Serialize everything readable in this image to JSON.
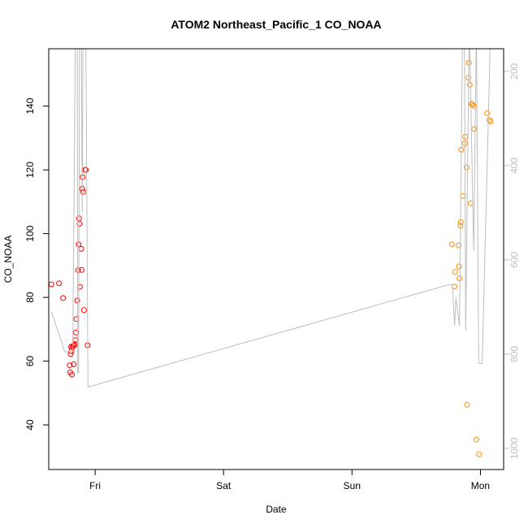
{
  "chart_data": {
    "type": "scatter",
    "title": "ATOM2 Northeast_Pacific_1 CO_NOAA",
    "xlabel": "Date",
    "ylabel": "CO_NOAA",
    "x_axis": {
      "type": "date",
      "range": [
        "2016-10-06T15:20",
        "2016-10-10T04:20"
      ],
      "ticks": [
        {
          "label": "Fri",
          "value": "2016-10-07T00:00"
        },
        {
          "label": "Sat",
          "value": "2016-10-08T00:00"
        },
        {
          "label": "Sun",
          "value": "2016-10-09T00:00"
        },
        {
          "label": "Mon",
          "value": "2016-10-10T00:00"
        }
      ]
    },
    "y_axis": {
      "range": [
        26,
        158
      ],
      "ticks": [
        40,
        60,
        80,
        100,
        120,
        140
      ]
    },
    "y2_axis": {
      "label": "",
      "range": [
        1045,
        152
      ],
      "ticks": [
        200,
        400,
        600,
        800,
        1000
      ],
      "inverted": true,
      "color": "#bebebe"
    },
    "grid": false,
    "series": [
      {
        "color": "#ff0000",
        "marker": "open-circle",
        "points": [
          [
            "2016-10-06T15:50",
            84.1
          ],
          [
            "2016-10-06T17:15",
            84.4
          ],
          [
            "2016-10-06T18:00",
            79.8
          ],
          [
            "2016-10-06T19:15",
            58.7
          ],
          [
            "2016-10-06T19:20",
            56.5
          ],
          [
            "2016-10-06T19:25",
            62.2
          ],
          [
            "2016-10-06T19:30",
            64.5
          ],
          [
            "2016-10-06T19:35",
            63.1
          ],
          [
            "2016-10-06T19:40",
            55.8
          ],
          [
            "2016-10-06T19:45",
            64.4
          ],
          [
            "2016-10-06T19:55",
            64.8
          ],
          [
            "2016-10-06T20:00",
            59.0
          ],
          [
            "2016-10-06T20:05",
            64.9
          ],
          [
            "2016-10-06T20:15",
            65.3
          ],
          [
            "2016-10-06T20:20",
            66.6
          ],
          [
            "2016-10-06T20:25",
            69.0
          ],
          [
            "2016-10-06T20:30",
            73.2
          ],
          [
            "2016-10-06T20:40",
            79.0
          ],
          [
            "2016-10-06T20:50",
            88.5
          ],
          [
            "2016-10-06T20:55",
            96.6
          ],
          [
            "2016-10-06T21:00",
            104.8
          ],
          [
            "2016-10-06T21:05",
            103.1
          ],
          [
            "2016-10-06T21:10",
            83.3
          ],
          [
            "2016-10-06T21:25",
            95.2
          ],
          [
            "2016-10-06T21:30",
            88.6
          ],
          [
            "2016-10-06T21:35",
            114.1
          ],
          [
            "2016-10-06T21:40",
            117.7
          ],
          [
            "2016-10-06T21:45",
            113.1
          ],
          [
            "2016-10-06T21:55",
            76.0
          ],
          [
            "2016-10-06T22:10",
            120.0
          ],
          [
            "2016-10-06T22:15",
            120.0
          ],
          [
            "2016-10-06T22:35",
            65.0
          ]
        ]
      },
      {
        "color": "#ff8c00",
        "marker": "open-circle",
        "points": [
          [
            "2016-10-09T18:40",
            96.6
          ],
          [
            "2016-10-09T19:10",
            83.4
          ],
          [
            "2016-10-09T19:15",
            88.0
          ],
          [
            "2016-10-09T19:55",
            96.3
          ],
          [
            "2016-10-09T20:00",
            89.7
          ],
          [
            "2016-10-09T20:05",
            86.0
          ],
          [
            "2016-10-09T20:15",
            102.5
          ],
          [
            "2016-10-09T20:20",
            103.6
          ],
          [
            "2016-10-09T20:25",
            126.3
          ],
          [
            "2016-10-09T20:45",
            111.8
          ],
          [
            "2016-10-09T21:05",
            128.3
          ],
          [
            "2016-10-09T21:10",
            130.4
          ],
          [
            "2016-10-09T21:25",
            120.8
          ],
          [
            "2016-10-09T21:30",
            46.3
          ],
          [
            "2016-10-09T21:45",
            148.9
          ],
          [
            "2016-10-09T21:50",
            153.6
          ],
          [
            "2016-10-09T22:00",
            146.7
          ],
          [
            "2016-10-09T22:10",
            109.5
          ],
          [
            "2016-10-09T22:20",
            140.7
          ],
          [
            "2016-10-09T22:30",
            140.5
          ],
          [
            "2016-10-09T22:45",
            140.1
          ],
          [
            "2016-10-09T22:50",
            132.8
          ],
          [
            "2016-10-09T23:15",
            35.4
          ],
          [
            "2016-10-09T23:45",
            30.8
          ],
          [
            "2016-10-10T01:15",
            137.8
          ],
          [
            "2016-10-10T01:40",
            135.6
          ],
          [
            "2016-10-10T01:55",
            135.2
          ]
        ]
      },
      {
        "color": "#bebebe",
        "marker": "line",
        "axis": "y2",
        "points": [
          [
            "2016-10-06T15:50",
            710
          ],
          [
            "2016-10-06T18:20",
            795
          ],
          [
            "2016-10-06T19:50",
            795
          ],
          [
            "2016-10-06T20:20",
            100
          ],
          [
            "2016-10-06T20:40",
            100
          ],
          [
            "2016-10-06T20:45",
            840
          ],
          [
            "2016-10-06T20:55",
            840
          ],
          [
            "2016-10-06T21:05",
            100
          ],
          [
            "2016-10-06T21:25",
            100
          ],
          [
            "2016-10-06T21:35",
            500
          ],
          [
            "2016-10-06T21:45",
            100
          ],
          [
            "2016-10-06T22:15",
            100
          ],
          [
            "2016-10-06T22:40",
            870
          ],
          [
            "2016-10-09T18:00",
            653
          ],
          [
            "2016-10-09T18:45",
            653
          ],
          [
            "2016-10-09T19:10",
            740
          ],
          [
            "2016-10-09T19:15",
            720
          ],
          [
            "2016-10-09T19:25",
            680
          ],
          [
            "2016-10-09T20:05",
            740
          ],
          [
            "2016-10-09T20:40",
            100
          ],
          [
            "2016-10-09T21:00",
            100
          ],
          [
            "2016-10-09T21:15",
            750
          ],
          [
            "2016-10-09T21:55",
            100
          ],
          [
            "2016-10-09T22:45",
            580
          ],
          [
            "2016-10-09T23:15",
            100
          ],
          [
            "2016-10-09T23:40",
            820
          ],
          [
            "2016-10-10T00:20",
            820
          ],
          [
            "2016-10-10T01:55",
            100
          ],
          [
            "2016-10-10T02:30",
            100
          ]
        ]
      }
    ]
  }
}
